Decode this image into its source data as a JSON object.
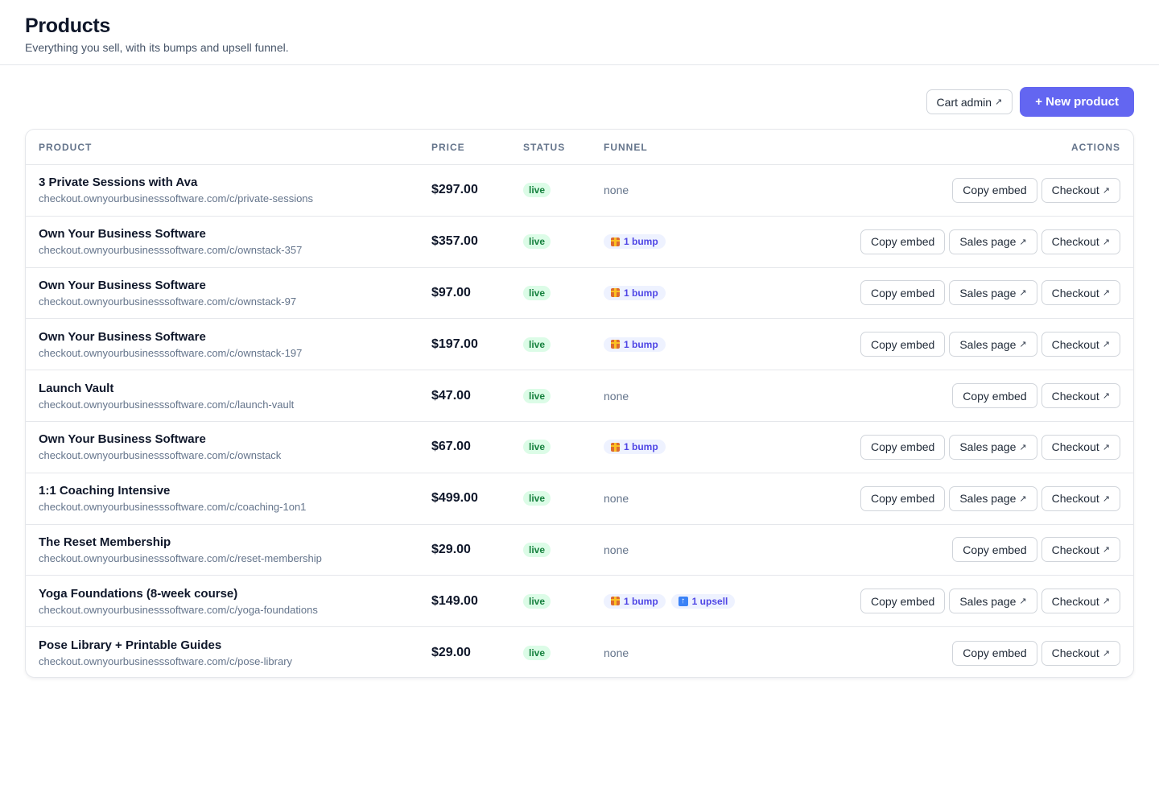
{
  "header": {
    "title": "Products",
    "subtitle": "Everything you sell, with its bumps and upsell funnel."
  },
  "toolbar": {
    "cart_admin_label": "Cart admin",
    "new_product_label": "+ New product"
  },
  "table": {
    "columns": {
      "product": "PRODUCT",
      "price": "PRICE",
      "status": "STATUS",
      "funnel": "FUNNEL",
      "actions": "ACTIONS"
    },
    "actions": {
      "copy_embed": "Copy embed",
      "sales_page": "Sales page",
      "checkout": "Checkout"
    },
    "rows": [
      {
        "name": "3 Private Sessions with Ava",
        "url": "checkout.ownyourbusinesssoftware.com/c/private-sessions",
        "price": "$297.00",
        "status": "live",
        "funnel_none": "none",
        "bump": "",
        "upsell": "",
        "sales_page": false
      },
      {
        "name": "Own Your Business Software",
        "url": "checkout.ownyourbusinesssoftware.com/c/ownstack-357",
        "price": "$357.00",
        "status": "live",
        "funnel_none": "",
        "bump": "1 bump",
        "upsell": "",
        "sales_page": true
      },
      {
        "name": "Own Your Business Software",
        "url": "checkout.ownyourbusinesssoftware.com/c/ownstack-97",
        "price": "$97.00",
        "status": "live",
        "funnel_none": "",
        "bump": "1 bump",
        "upsell": "",
        "sales_page": true
      },
      {
        "name": "Own Your Business Software",
        "url": "checkout.ownyourbusinesssoftware.com/c/ownstack-197",
        "price": "$197.00",
        "status": "live",
        "funnel_none": "",
        "bump": "1 bump",
        "upsell": "",
        "sales_page": true
      },
      {
        "name": "Launch Vault",
        "url": "checkout.ownyourbusinesssoftware.com/c/launch-vault",
        "price": "$47.00",
        "status": "live",
        "funnel_none": "none",
        "bump": "",
        "upsell": "",
        "sales_page": false
      },
      {
        "name": "Own Your Business Software",
        "url": "checkout.ownyourbusinesssoftware.com/c/ownstack",
        "price": "$67.00",
        "status": "live",
        "funnel_none": "",
        "bump": "1 bump",
        "upsell": "",
        "sales_page": true
      },
      {
        "name": "1:1 Coaching Intensive",
        "url": "checkout.ownyourbusinesssoftware.com/c/coaching-1on1",
        "price": "$499.00",
        "status": "live",
        "funnel_none": "none",
        "bump": "",
        "upsell": "",
        "sales_page": true
      },
      {
        "name": "The Reset Membership",
        "url": "checkout.ownyourbusinesssoftware.com/c/reset-membership",
        "price": "$29.00",
        "status": "live",
        "funnel_none": "none",
        "bump": "",
        "upsell": "",
        "sales_page": false
      },
      {
        "name": "Yoga Foundations (8-week course)",
        "url": "checkout.ownyourbusinesssoftware.com/c/yoga-foundations",
        "price": "$149.00",
        "status": "live",
        "funnel_none": "",
        "bump": "1 bump",
        "upsell": "1 upsell",
        "sales_page": true
      },
      {
        "name": "Pose Library + Printable Guides",
        "url": "checkout.ownyourbusinesssoftware.com/c/pose-library",
        "price": "$29.00",
        "status": "live",
        "funnel_none": "none",
        "bump": "",
        "upsell": "",
        "sales_page": false
      }
    ]
  },
  "icons": {
    "external_link": "arrow-up-right-icon",
    "bump": "gift-icon",
    "upsell": "upsell-arrow-icon"
  },
  "colors": {
    "primary": "#6366f1",
    "live_bg": "#dcfce7",
    "live_text": "#15803d",
    "chip_bg": "#eef2ff",
    "chip_text": "#4f46e5"
  }
}
